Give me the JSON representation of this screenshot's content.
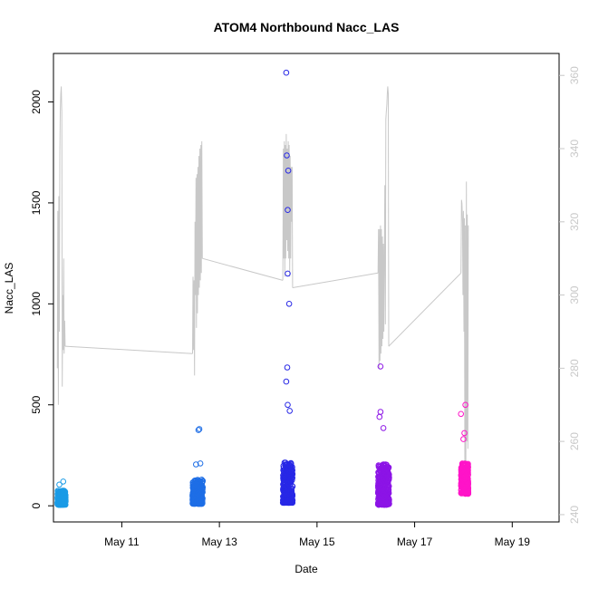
{
  "chart_data": {
    "type": "scatter",
    "title": "ATOM4 Northbound Nacc_LAS",
    "xlabel": "Date",
    "ylabel": "Nacc_LAS",
    "x_domain_days": [
      9.6,
      19.96
    ],
    "ylim": [
      -80,
      2240
    ],
    "y2lim": [
      238,
      366
    ],
    "x_ticks": [
      {
        "day": 11,
        "label": "May 11"
      },
      {
        "day": 13,
        "label": "May 13"
      },
      {
        "day": 15,
        "label": "May 15"
      },
      {
        "day": 17,
        "label": "May 17"
      },
      {
        "day": 19,
        "label": "May 19"
      }
    ],
    "y_ticks": [
      0,
      500,
      1000,
      1500,
      2000
    ],
    "y2_ticks": [
      240,
      260,
      280,
      300,
      320,
      340,
      360
    ],
    "y2_color": "#c8c8c8",
    "line_series": {
      "color": "#c8c8c8",
      "segments": [
        [
          [
            9.68,
            280
          ],
          [
            9.69,
            323
          ],
          [
            9.7,
            270
          ],
          [
            9.71,
            327
          ],
          [
            9.72,
            290
          ],
          [
            9.73,
            338
          ],
          [
            9.74,
            350
          ],
          [
            9.75,
            355
          ],
          [
            9.76,
            357
          ],
          [
            9.77,
            350
          ],
          [
            9.78,
            275
          ],
          [
            9.79,
            300
          ],
          [
            9.8,
            285
          ],
          [
            9.81,
            310
          ],
          [
            9.82,
            284
          ],
          [
            9.83,
            293
          ],
          [
            9.84,
            286
          ]
        ],
        [
          [
            9.84,
            286
          ],
          [
            12.45,
            284
          ]
        ],
        [
          [
            12.45,
            284
          ],
          [
            12.46,
            305
          ],
          [
            12.47,
            285
          ],
          [
            12.48,
            304
          ],
          [
            12.49,
            278
          ],
          [
            12.5,
            320
          ],
          [
            12.51,
            300
          ],
          [
            12.52,
            332
          ],
          [
            12.53,
            291
          ],
          [
            12.54,
            333
          ],
          [
            12.55,
            295
          ],
          [
            12.56,
            335
          ],
          [
            12.57,
            300
          ],
          [
            12.58,
            338
          ],
          [
            12.59,
            302
          ],
          [
            12.6,
            340
          ],
          [
            12.61,
            304
          ],
          [
            12.62,
            341
          ],
          [
            12.63,
            306
          ],
          [
            12.64,
            342
          ],
          [
            12.65,
            310
          ]
        ],
        [
          [
            12.65,
            310
          ],
          [
            14.3,
            304
          ]
        ],
        [
          [
            14.3,
            304
          ],
          [
            14.31,
            340
          ],
          [
            14.32,
            310
          ],
          [
            14.33,
            342
          ],
          [
            14.34,
            305
          ],
          [
            14.35,
            341
          ],
          [
            14.36,
            310
          ],
          [
            14.37,
            344
          ],
          [
            14.38,
            315
          ],
          [
            14.39,
            340
          ],
          [
            14.4,
            312
          ],
          [
            14.41,
            342
          ],
          [
            14.42,
            310
          ],
          [
            14.43,
            341
          ],
          [
            14.44,
            305
          ],
          [
            14.45,
            338
          ],
          [
            14.46,
            310
          ],
          [
            14.47,
            335
          ],
          [
            14.48,
            320
          ],
          [
            14.49,
            335
          ],
          [
            14.5,
            302
          ]
        ],
        [
          [
            14.5,
            302
          ],
          [
            16.25,
            306
          ]
        ],
        [
          [
            16.25,
            306
          ],
          [
            16.26,
            318
          ],
          [
            16.27,
            280
          ],
          [
            16.28,
            318
          ],
          [
            16.29,
            282
          ],
          [
            16.3,
            319
          ],
          [
            16.31,
            284
          ],
          [
            16.32,
            318
          ],
          [
            16.33,
            286
          ],
          [
            16.34,
            316
          ],
          [
            16.35,
            288
          ],
          [
            16.36,
            314
          ],
          [
            16.37,
            290
          ],
          [
            16.38,
            312
          ],
          [
            16.39,
            330
          ],
          [
            16.4,
            292
          ],
          [
            16.41,
            348
          ],
          [
            16.42,
            350
          ],
          [
            16.43,
            352
          ],
          [
            16.44,
            355
          ],
          [
            16.45,
            357
          ],
          [
            16.46,
            355
          ],
          [
            16.47,
            286
          ]
        ],
        [
          [
            16.47,
            286
          ],
          [
            17.95,
            306
          ]
        ],
        [
          [
            17.95,
            306
          ],
          [
            17.96,
            326
          ],
          [
            17.97,
            325
          ],
          [
            17.98,
            320
          ],
          [
            17.99,
            300
          ],
          [
            18.0,
            323
          ],
          [
            18.01,
            290
          ],
          [
            18.02,
            321
          ],
          [
            18.03,
            252
          ],
          [
            18.04,
            319
          ],
          [
            18.05,
            250
          ],
          [
            18.06,
            331
          ],
          [
            18.07,
            260
          ],
          [
            18.08,
            322
          ],
          [
            18.09,
            258
          ],
          [
            18.1,
            319
          ]
        ]
      ]
    },
    "scatter_groups": [
      {
        "color": "#1a9be6",
        "x_range": [
          9.68,
          9.85
        ],
        "count": 240,
        "y_base": 5,
        "y_spread": 70,
        "outliers": [
          [
            9.8,
            120
          ],
          [
            9.72,
            105
          ]
        ]
      },
      {
        "color": "#1e6ee6",
        "x_range": [
          12.45,
          12.66
        ],
        "count": 300,
        "y_base": 10,
        "y_spread": 120,
        "outliers": [
          [
            12.57,
            375
          ],
          [
            12.59,
            380
          ],
          [
            12.52,
            205
          ],
          [
            12.61,
            210
          ]
        ]
      },
      {
        "color": "#2828e6",
        "x_range": [
          14.3,
          14.5
        ],
        "count": 300,
        "y_base": 15,
        "y_spread": 200,
        "outliers": [
          [
            14.37,
            2145
          ],
          [
            14.38,
            1735
          ],
          [
            14.41,
            1660
          ],
          [
            14.4,
            1465
          ],
          [
            14.4,
            1150
          ],
          [
            14.43,
            1000
          ],
          [
            14.39,
            685
          ],
          [
            14.37,
            615
          ],
          [
            14.4,
            500
          ],
          [
            14.44,
            470
          ]
        ]
      },
      {
        "color": "#8c14e6",
        "x_range": [
          16.25,
          16.48
        ],
        "count": 320,
        "y_base": 5,
        "y_spread": 200,
        "outliers": [
          [
            16.3,
            690
          ],
          [
            16.3,
            465
          ],
          [
            16.28,
            440
          ],
          [
            16.36,
            385
          ]
        ]
      },
      {
        "color": "#ff14c8",
        "x_range": [
          17.95,
          18.1
        ],
        "count": 320,
        "y_base": 60,
        "y_spread": 150,
        "outliers": [
          [
            18.04,
            500
          ],
          [
            17.95,
            455
          ],
          [
            18.02,
            360
          ],
          [
            18.0,
            330
          ]
        ]
      }
    ]
  }
}
